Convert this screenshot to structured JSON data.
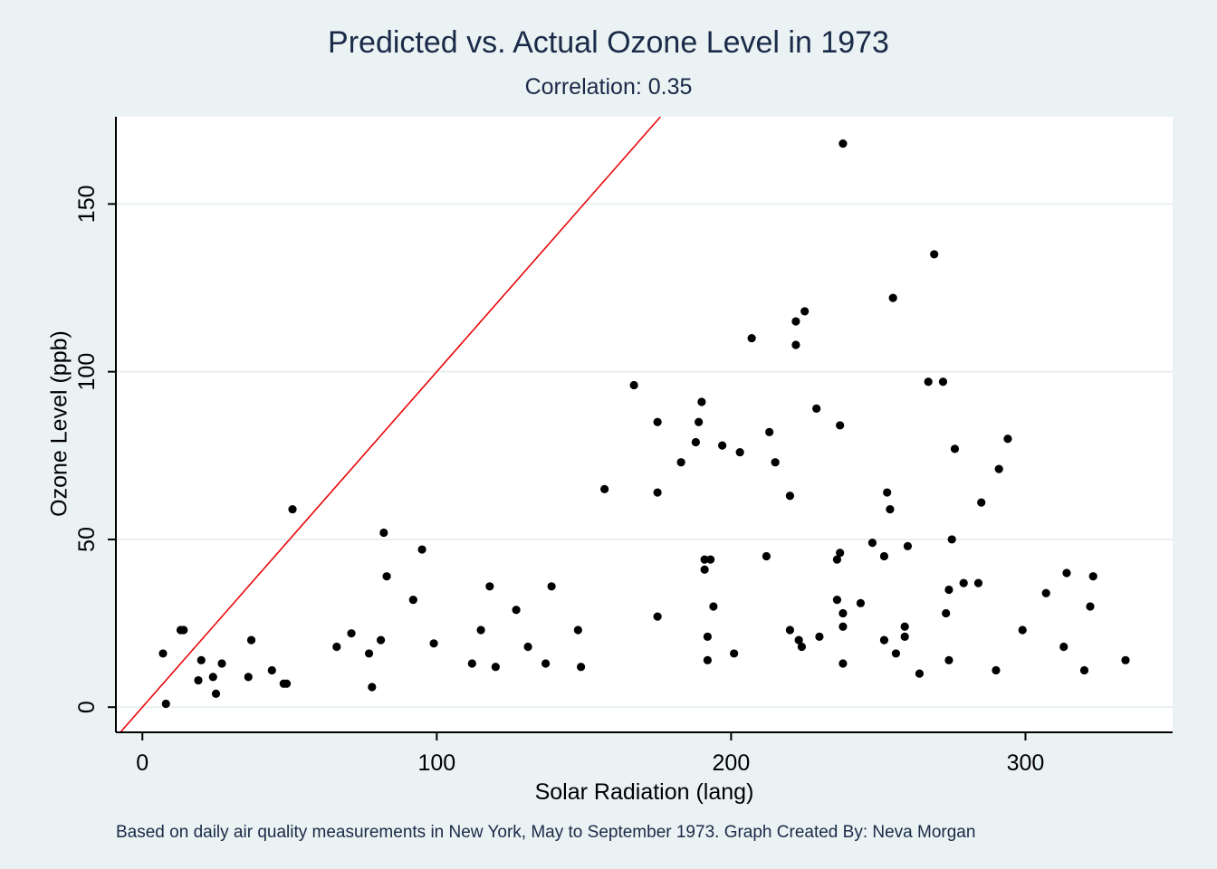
{
  "chart_data": {
    "type": "scatter",
    "title": "Predicted vs. Actual Ozone Level in 1973",
    "subtitle": "Correlation: 0.35",
    "xlabel": "Solar Radiation (lang)",
    "ylabel": "Ozone Level (ppb)",
    "note": "Based on daily air quality measurements in New York, May to September 1973. Graph Created By: Neva Morgan",
    "xlim": [
      -9,
      350
    ],
    "ylim": [
      -7.5,
      176
    ],
    "xticks": [
      0,
      100,
      200,
      300
    ],
    "yticks": [
      0,
      50,
      100,
      150
    ],
    "grid": true,
    "colors": {
      "background": "#eaf2f3",
      "plot_background": "#ffffff",
      "points": "#000000",
      "line": "#e8070a",
      "gridlines": "#e9eff0",
      "title": "#1a2a48"
    },
    "reference_line": {
      "type": "y=x",
      "color": "#e8070a"
    },
    "points": [
      [
        7,
        16
      ],
      [
        8,
        1
      ],
      [
        13,
        23
      ],
      [
        14,
        23
      ],
      [
        19,
        8
      ],
      [
        20,
        14
      ],
      [
        24,
        9
      ],
      [
        25,
        4
      ],
      [
        27,
        13
      ],
      [
        36,
        9
      ],
      [
        37,
        20
      ],
      [
        44,
        11
      ],
      [
        48,
        7
      ],
      [
        49,
        7
      ],
      [
        51,
        59
      ],
      [
        66,
        18
      ],
      [
        71,
        22
      ],
      [
        77,
        16
      ],
      [
        78,
        6
      ],
      [
        81,
        20
      ],
      [
        82,
        52
      ],
      [
        83,
        39
      ],
      [
        92,
        32
      ],
      [
        95,
        47
      ],
      [
        99,
        19
      ],
      [
        112,
        13
      ],
      [
        115,
        23
      ],
      [
        118,
        36
      ],
      [
        120,
        12
      ],
      [
        127,
        29
      ],
      [
        131,
        18
      ],
      [
        137,
        13
      ],
      [
        139,
        36
      ],
      [
        148,
        23
      ],
      [
        149,
        12
      ],
      [
        157,
        65
      ],
      [
        167,
        96
      ],
      [
        175,
        85
      ],
      [
        175,
        64
      ],
      [
        175,
        27
      ],
      [
        183,
        73
      ],
      [
        188,
        79
      ],
      [
        189,
        85
      ],
      [
        190,
        91
      ],
      [
        191,
        44
      ],
      [
        191,
        41
      ],
      [
        192,
        21
      ],
      [
        192,
        14
      ],
      [
        193,
        44
      ],
      [
        194,
        30
      ],
      [
        197,
        78
      ],
      [
        201,
        16
      ],
      [
        203,
        76
      ],
      [
        207,
        110
      ],
      [
        212,
        45
      ],
      [
        213,
        82
      ],
      [
        215,
        73
      ],
      [
        220,
        63
      ],
      [
        220,
        23
      ],
      [
        222,
        115
      ],
      [
        222,
        108
      ],
      [
        223,
        20
      ],
      [
        224,
        18
      ],
      [
        225,
        118
      ],
      [
        229,
        89
      ],
      [
        230,
        21
      ],
      [
        236,
        44
      ],
      [
        236,
        32
      ],
      [
        237,
        84
      ],
      [
        237,
        46
      ],
      [
        238,
        168
      ],
      [
        238,
        28
      ],
      [
        238,
        24
      ],
      [
        238,
        13
      ],
      [
        244,
        31
      ],
      [
        248,
        49
      ],
      [
        252,
        45
      ],
      [
        252,
        20
      ],
      [
        253,
        64
      ],
      [
        254,
        59
      ],
      [
        255,
        122
      ],
      [
        256,
        16
      ],
      [
        259,
        24
      ],
      [
        259,
        21
      ],
      [
        260,
        48
      ],
      [
        264,
        10
      ],
      [
        267,
        97
      ],
      [
        269,
        135
      ],
      [
        272,
        97
      ],
      [
        273,
        28
      ],
      [
        274,
        35
      ],
      [
        274,
        14
      ],
      [
        275,
        50
      ],
      [
        276,
        77
      ],
      [
        279,
        37
      ],
      [
        284,
        37
      ],
      [
        285,
        61
      ],
      [
        290,
        11
      ],
      [
        291,
        71
      ],
      [
        294,
        80
      ],
      [
        299,
        23
      ],
      [
        307,
        34
      ],
      [
        313,
        18
      ],
      [
        314,
        40
      ],
      [
        320,
        11
      ],
      [
        322,
        30
      ],
      [
        323,
        39
      ],
      [
        334,
        14
      ]
    ]
  }
}
